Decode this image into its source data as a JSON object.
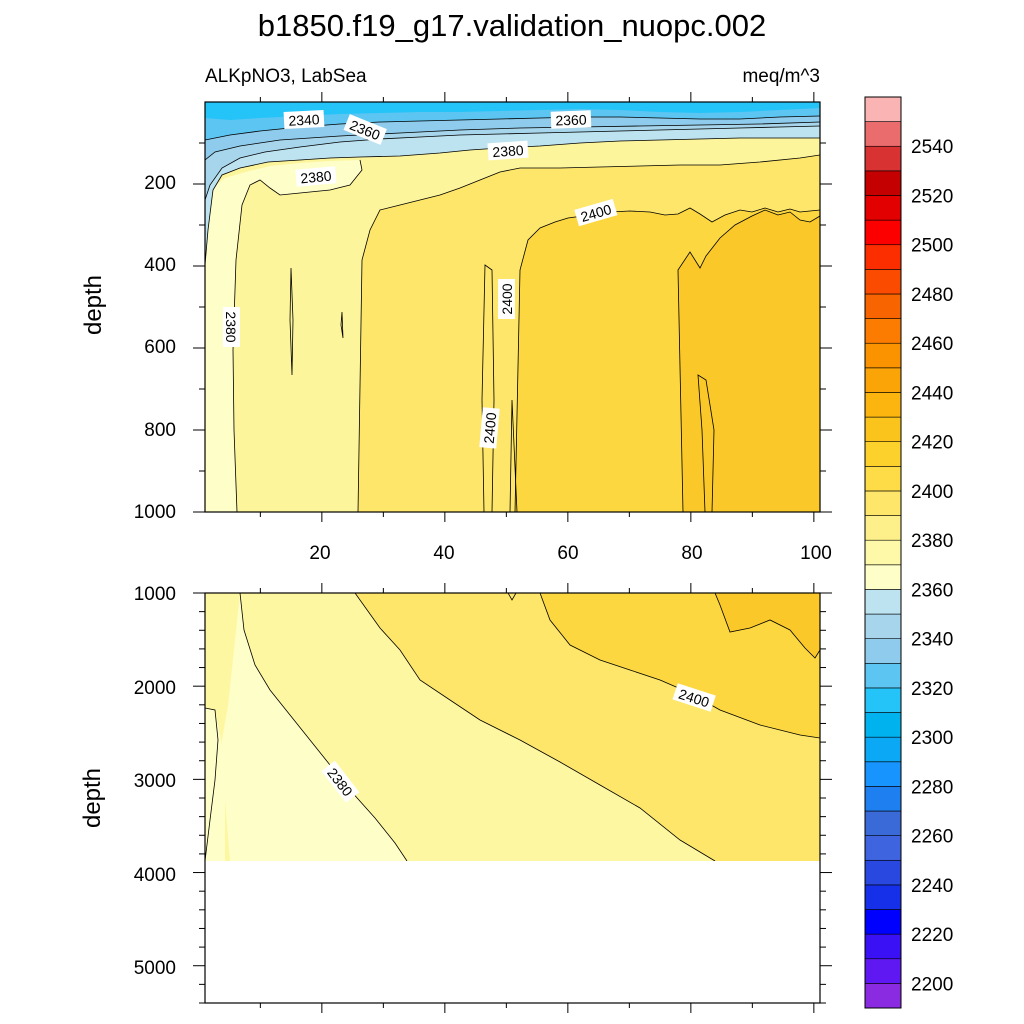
{
  "chart_data": {
    "type": "contour",
    "title": "b1850.f19_g17.validation_nuopc.002",
    "variable_label": "ALKpNO3, LabSea",
    "units": "meq/m^3",
    "panels": [
      {
        "name": "upper",
        "ylabel": "depth",
        "xlabel": "",
        "xlim": [
          1,
          101
        ],
        "ylim": [
          1000,
          0
        ],
        "xticks": [
          "20",
          "40",
          "60",
          "80",
          "100"
        ],
        "yticks": [
          "200",
          "400",
          "600",
          "800",
          "1000"
        ],
        "contour_labels": [
          "2340",
          "2360",
          "2360",
          "2380",
          "2380",
          "2400",
          "2380",
          "2400",
          "2400"
        ]
      },
      {
        "name": "lower",
        "ylabel": "depth",
        "xlabel": "",
        "xlim": [
          1,
          101
        ],
        "ylim": [
          5400,
          1000
        ],
        "yticks": [
          "1000",
          "2000",
          "3000",
          "4000",
          "5000"
        ],
        "contour_labels": [
          "2400",
          "2380"
        ]
      }
    ],
    "colorbar": {
      "levels": [
        2200,
        2210,
        2220,
        2230,
        2240,
        2250,
        2260,
        2270,
        2280,
        2290,
        2300,
        2310,
        2320,
        2330,
        2340,
        2350,
        2360,
        2370,
        2380,
        2390,
        2400,
        2410,
        2420,
        2430,
        2440,
        2450,
        2460,
        2470,
        2480,
        2490,
        2500,
        2510,
        2520,
        2530,
        2540,
        2550
      ],
      "labels": [
        "2200",
        "2220",
        "2240",
        "2260",
        "2280",
        "2300",
        "2320",
        "2340",
        "2360",
        "2380",
        "2400",
        "2420",
        "2440",
        "2460",
        "2480",
        "2500",
        "2520",
        "2540"
      ],
      "colors": [
        "#8a2be2",
        "#5f18f2",
        "#3a10f4",
        "#0000ff",
        "#1530e8",
        "#2848e0",
        "#3e64e0",
        "#3a6ad8",
        "#1e7ff0",
        "#1894ff",
        "#0aa8f5",
        "#00b3ef",
        "#24c4f8",
        "#5cc5f2",
        "#8ecbec",
        "#a7d5ec",
        "#bde3f0",
        "#fefec8",
        "#fef9a8",
        "#fdf08a",
        "#fde66a",
        "#fddc48",
        "#fcd12c",
        "#fbc41c",
        "#fbb50e",
        "#fba408",
        "#fb9300",
        "#fb7c00",
        "#f86400",
        "#fb4b00",
        "#fc2e00",
        "#fc0000",
        "#e20000",
        "#c40000",
        "#d83232",
        "#ea6c6c",
        "#fbb4b4"
      ]
    }
  }
}
